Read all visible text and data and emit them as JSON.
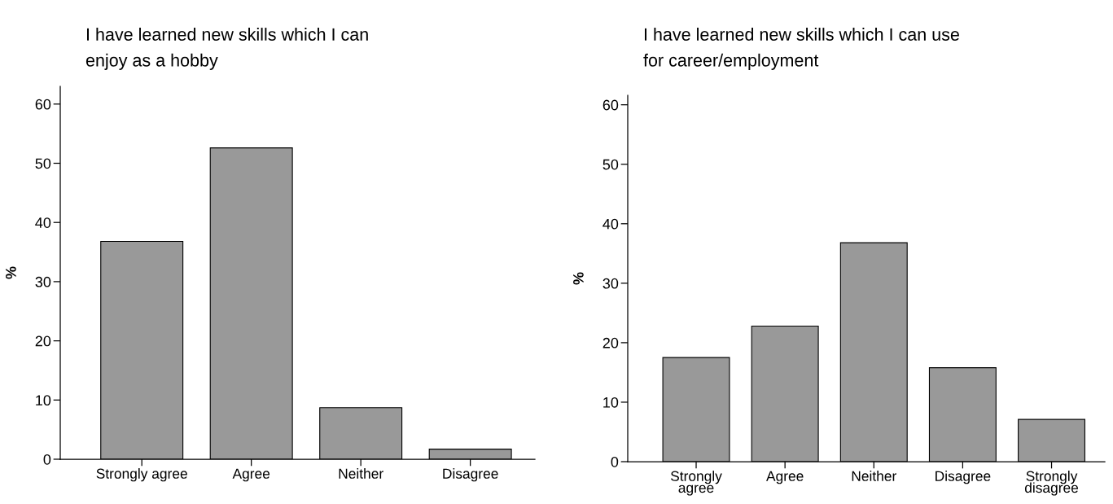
{
  "chart_data": [
    {
      "type": "bar",
      "title": "I have learned new skills which I can\nenjoy as a hobby",
      "ylabel": "%",
      "categories": [
        "Strongly agree",
        "Agree",
        "Neither",
        "Disagree"
      ],
      "values": [
        36.8,
        52.6,
        8.7,
        1.7
      ],
      "color": "#999999",
      "ylim": [
        0,
        63
      ],
      "yticks": [
        0,
        10,
        20,
        30,
        40,
        50,
        60
      ],
      "grid": false
    },
    {
      "type": "bar",
      "title": "I have learned new skills which I can use\nfor career/employment",
      "ylabel": "%",
      "categories": [
        "Strongly\nagree",
        "Agree",
        "Neither",
        "Disagree",
        "Strongly\ndisagree"
      ],
      "values": [
        17.5,
        22.8,
        36.8,
        15.8,
        7.1
      ],
      "color": "#999999",
      "ylim": [
        0,
        61.6
      ],
      "yticks": [
        0,
        10,
        20,
        30,
        40,
        50,
        60
      ],
      "grid": false
    }
  ]
}
